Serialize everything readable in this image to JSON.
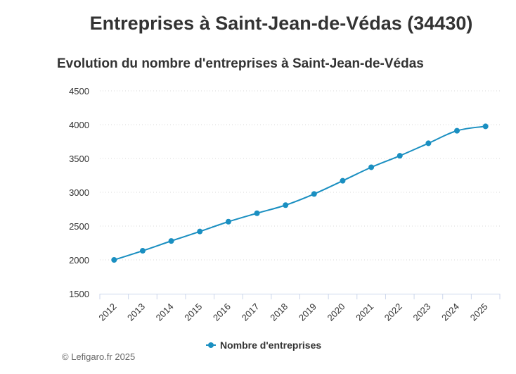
{
  "page": {
    "title": "Entreprises à Saint-Jean-de-Védas (34430)",
    "credit": "© Lefigaro.fr 2025"
  },
  "colors": {
    "series": "#1a8fc1",
    "grid": "#d9d9d9",
    "axis": "#ccd6eb"
  },
  "chart_data": {
    "type": "line",
    "title": "Evolution du nombre d'entreprises à Saint-Jean-de-Védas",
    "xlabel": "",
    "ylabel": "",
    "categories": [
      "2012",
      "2013",
      "2014",
      "2015",
      "2016",
      "2017",
      "2018",
      "2019",
      "2020",
      "2021",
      "2022",
      "2023",
      "2024",
      "2025"
    ],
    "yticks": [
      "1500",
      "2000",
      "2500",
      "3000",
      "3500",
      "4000",
      "4500"
    ],
    "ylim": [
      1500,
      4500
    ],
    "grid": true,
    "legend_position": "bottom-center",
    "series": [
      {
        "name": "Nombre d'entreprises",
        "values": [
          2000,
          2135,
          2280,
          2420,
          2565,
          2690,
          2810,
          2975,
          3170,
          3370,
          3540,
          3725,
          3910,
          3975
        ]
      }
    ]
  }
}
